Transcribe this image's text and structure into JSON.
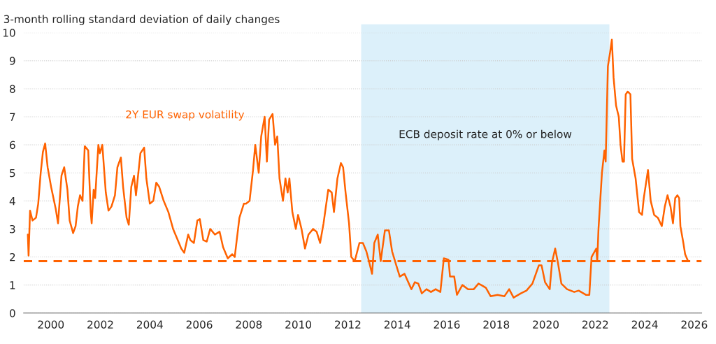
{
  "chart_data": {
    "type": "line",
    "title": "3-month rolling standard deviation of daily changes",
    "series": [
      {
        "name": "2Y EUR swap volatility",
        "color": "#ff6200",
        "x": [
          1999.07,
          1999.1,
          1999.16,
          1999.26,
          1999.4,
          1999.49,
          1999.59,
          1999.68,
          1999.77,
          1999.87,
          2000.01,
          2000.2,
          2000.29,
          2000.43,
          2000.54,
          2000.67,
          2000.76,
          2000.9,
          2001.0,
          2001.09,
          2001.18,
          2001.28,
          2001.37,
          2001.51,
          2001.61,
          2001.65,
          2001.73,
          2001.79,
          2001.92,
          2001.98,
          2002.08,
          2002.22,
          2002.33,
          2002.45,
          2002.59,
          2002.69,
          2002.83,
          2002.92,
          2003.06,
          2003.15,
          2003.25,
          2003.36,
          2003.44,
          2003.62,
          2003.77,
          2003.86,
          2004.0,
          2004.14,
          2004.26,
          2004.38,
          2004.56,
          2004.75,
          2004.94,
          2005.13,
          2005.27,
          2005.39,
          2005.55,
          2005.64,
          2005.78,
          2005.92,
          2006.02,
          2006.16,
          2006.3,
          2006.44,
          2006.63,
          2006.82,
          2006.96,
          2007.15,
          2007.33,
          2007.43,
          2007.62,
          2007.8,
          2007.89,
          2008.03,
          2008.17,
          2008.26,
          2008.4,
          2008.5,
          2008.64,
          2008.73,
          2008.82,
          2008.96,
          2009.06,
          2009.15,
          2009.24,
          2009.38,
          2009.48,
          2009.57,
          2009.64,
          2009.76,
          2009.9,
          2009.99,
          2010.13,
          2010.27,
          2010.41,
          2010.6,
          2010.74,
          2010.88,
          2011.02,
          2011.21,
          2011.35,
          2011.44,
          2011.58,
          2011.72,
          2011.81,
          2011.91,
          2012.05,
          2012.14,
          2012.28,
          2012.47,
          2012.61,
          2012.75,
          2012.84,
          2012.98,
          2013.07,
          2013.21,
          2013.33,
          2013.5,
          2013.66,
          2013.79,
          2013.96,
          2014.1,
          2014.29,
          2014.57,
          2014.71,
          2014.85,
          2014.99,
          2015.18,
          2015.36,
          2015.55,
          2015.74,
          2015.88,
          2016.07,
          2016.13,
          2016.3,
          2016.41,
          2016.63,
          2016.86,
          2017.09,
          2017.28,
          2017.39,
          2017.58,
          2017.77,
          2018.05,
          2018.33,
          2018.52,
          2018.7,
          2018.99,
          2019.22,
          2019.46,
          2019.72,
          2019.83,
          2019.97,
          2020.16,
          2020.25,
          2020.38,
          2020.49,
          2020.63,
          2020.86,
          2021.15,
          2021.33,
          2021.62,
          2021.76,
          2021.85,
          2022.04,
          2022.08,
          2022.13,
          2022.27,
          2022.37,
          2022.42,
          2022.51,
          2022.6,
          2022.67,
          2022.74,
          2022.84,
          2022.95,
          2023.02,
          2023.1,
          2023.16,
          2023.23,
          2023.31,
          2023.42,
          2023.49,
          2023.63,
          2023.77,
          2023.89,
          2023.96,
          2024.13,
          2024.24,
          2024.38,
          2024.53,
          2024.69,
          2024.81,
          2024.92,
          2025.04,
          2025.14,
          2025.23,
          2025.32,
          2025.39,
          2025.44,
          2025.56,
          2025.63,
          2025.75
        ],
        "values": [
          2.8,
          2.05,
          3.65,
          3.3,
          3.4,
          3.9,
          5.0,
          5.75,
          6.05,
          5.2,
          4.5,
          3.7,
          3.2,
          4.9,
          5.2,
          4.4,
          3.3,
          2.85,
          3.1,
          3.8,
          4.2,
          4.0,
          5.95,
          5.8,
          3.6,
          3.2,
          4.4,
          4.1,
          6.0,
          5.7,
          6.0,
          4.3,
          3.65,
          3.8,
          4.2,
          5.2,
          5.55,
          4.5,
          3.4,
          3.15,
          4.5,
          4.9,
          4.2,
          5.7,
          5.9,
          4.8,
          3.9,
          4.0,
          4.65,
          4.5,
          4.0,
          3.6,
          3.0,
          2.6,
          2.3,
          2.15,
          2.8,
          2.6,
          2.5,
          3.3,
          3.35,
          2.6,
          2.55,
          3.0,
          2.8,
          2.9,
          2.35,
          1.95,
          2.1,
          2.0,
          3.4,
          3.9,
          3.9,
          4.0,
          5.1,
          6.0,
          5.0,
          6.3,
          7.0,
          5.4,
          6.9,
          7.1,
          6.0,
          6.3,
          4.8,
          4.0,
          4.8,
          4.3,
          4.8,
          3.6,
          3.0,
          3.5,
          3.0,
          2.3,
          2.8,
          3.0,
          2.9,
          2.5,
          3.2,
          4.4,
          4.3,
          3.6,
          4.8,
          5.35,
          5.2,
          4.3,
          3.2,
          2.0,
          1.85,
          2.5,
          2.5,
          2.2,
          1.9,
          1.4,
          2.5,
          2.8,
          1.85,
          2.95,
          2.95,
          2.2,
          1.7,
          1.3,
          1.4,
          0.85,
          1.1,
          1.05,
          0.7,
          0.85,
          0.75,
          0.85,
          0.75,
          1.95,
          1.9,
          1.3,
          1.3,
          0.65,
          1.0,
          0.85,
          0.85,
          1.05,
          1.0,
          0.9,
          0.6,
          0.65,
          0.6,
          0.85,
          0.55,
          0.7,
          0.8,
          1.05,
          1.7,
          1.7,
          1.1,
          0.85,
          1.8,
          2.3,
          1.8,
          1.05,
          0.85,
          0.75,
          0.8,
          0.65,
          0.65,
          2.0,
          2.3,
          1.85,
          3.0,
          5.0,
          5.8,
          5.4,
          8.8,
          9.3,
          9.75,
          8.4,
          7.4,
          7.0,
          6.0,
          5.4,
          5.4,
          7.8,
          7.9,
          7.8,
          5.5,
          4.8,
          3.6,
          3.5,
          4.1,
          5.1,
          4.0,
          3.5,
          3.4,
          3.1,
          3.8,
          4.2,
          3.8,
          3.2,
          4.1,
          4.2,
          4.1,
          3.1,
          2.5,
          2.1,
          1.85
        ]
      }
    ],
    "xlim": [
      1998.9,
      2026.3
    ],
    "ylim": [
      0,
      10
    ],
    "xticks": [
      2000,
      2002,
      2004,
      2006,
      2008,
      2010,
      2012,
      2014,
      2016,
      2018,
      2020,
      2022,
      2024,
      2026
    ],
    "yticks": [
      0,
      1,
      2,
      3,
      4,
      5,
      6,
      7,
      8,
      9,
      10
    ],
    "grid": "y",
    "legend": false,
    "marker": "none",
    "line_style": "solid",
    "ref_lines": [
      {
        "axis": "y",
        "value": 1.85,
        "color": "#ff6200",
        "line_style": "dashed"
      }
    ],
    "bands": [
      {
        "axis": "x",
        "from": 2012.54,
        "to": 2022.57,
        "label": "ECB deposit rate at 0% or below",
        "color": "#dcf0fa"
      }
    ]
  }
}
